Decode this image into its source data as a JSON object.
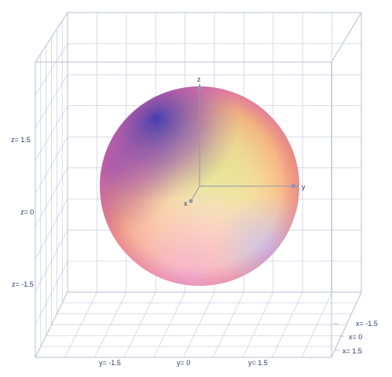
{
  "scene": {
    "type": "3d-surface-plot",
    "surface": "sphere",
    "background": "#ffffff",
    "grid_color": "#c9cbe0",
    "frame_color": "#b8bcd6",
    "axis_color": "#8f97b2"
  },
  "axes": {
    "x": {
      "label": "x",
      "ticks": [
        "x= -1.5",
        "x= 0",
        "x= 1.5"
      ]
    },
    "y": {
      "label": "y",
      "ticks": [
        "y= -1.5",
        "y= 0",
        "y= 1.5"
      ]
    },
    "z": {
      "label": "z",
      "ticks": [
        "z= 1.5",
        "z= 0",
        "z= -1.5"
      ]
    }
  },
  "chart_data": {
    "type": "scatter",
    "surface": "sphere",
    "center": [
      0,
      0,
      0
    ],
    "radius": 1.8,
    "axis_ticks": {
      "x": [
        -1.5,
        0,
        1.5
      ],
      "y": [
        -1.5,
        0,
        1.5
      ],
      "z": [
        -1.5,
        0,
        1.5
      ]
    },
    "grid": true,
    "colors": [
      "#3f3fb5",
      "#9b3fa8",
      "#f7a86a",
      "#fde59a",
      "#f5b6d6",
      "#c8c8f5"
    ]
  }
}
